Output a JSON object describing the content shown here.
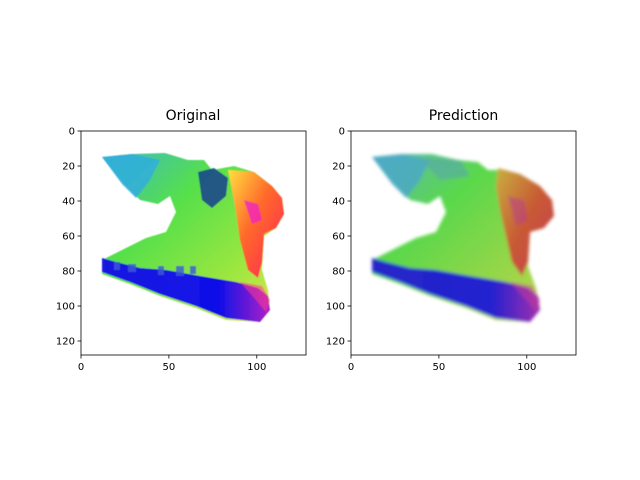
{
  "chart_data": [
    {
      "type": "heatmap",
      "title": "Original",
      "xlabel": "",
      "ylabel": "",
      "xlim": [
        0,
        128
      ],
      "ylim": [
        128,
        0
      ],
      "xticks": [
        0,
        50,
        100
      ],
      "yticks": [
        0,
        20,
        40,
        60,
        80,
        100,
        120
      ],
      "xtick_labels": [
        "0",
        "50",
        "100"
      ],
      "ytick_labels": [
        "0",
        "20",
        "40",
        "60",
        "80",
        "100",
        "120"
      ],
      "colormap": "RGB normal map",
      "colors": {
        "background": "#ffffff",
        "blue": "#0a0ae6",
        "green": "#3cf03c",
        "teal": "#28b4c8",
        "red": "#ff2a3a",
        "magenta": "#e61ed2"
      },
      "sharp": true
    },
    {
      "type": "heatmap",
      "title": "Prediction",
      "xlabel": "",
      "ylabel": "",
      "xlim": [
        0,
        128
      ],
      "ylim": [
        128,
        0
      ],
      "xticks": [
        0,
        50,
        100
      ],
      "yticks": [
        0,
        20,
        40,
        60,
        80,
        100,
        120
      ],
      "xtick_labels": [
        "0",
        "50",
        "100"
      ],
      "ytick_labels": [
        "0",
        "20",
        "40",
        "60",
        "80",
        "100",
        "120"
      ],
      "colormap": "RGB normal map",
      "colors": {
        "background": "#ffffff",
        "blue": "#1a1ad0",
        "green": "#44e64a",
        "teal": "#3ca8c0",
        "red": "#d8503a",
        "magenta": "#c83ab4"
      },
      "sharp": false
    }
  ]
}
